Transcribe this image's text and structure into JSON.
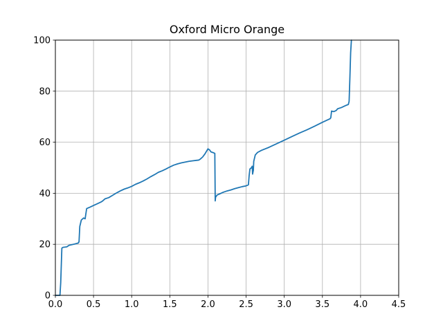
{
  "chart_data": {
    "type": "line",
    "title": "Oxford Micro Orange",
    "xlabel": "",
    "ylabel": "",
    "xlim": [
      0,
      4.5
    ],
    "ylim": [
      0,
      100
    ],
    "xticks": [
      0.0,
      0.5,
      1.0,
      1.5,
      2.0,
      2.5,
      3.0,
      3.5,
      4.0,
      4.5
    ],
    "xtick_labels": [
      "0.0",
      "0.5",
      "1.0",
      "1.5",
      "2.0",
      "2.5",
      "3.0",
      "3.5",
      "4.0",
      "4.5"
    ],
    "yticks": [
      0,
      20,
      40,
      60,
      80,
      100
    ],
    "ytick_labels": [
      "0",
      "20",
      "40",
      "60",
      "80",
      "100"
    ],
    "grid": true,
    "series": [
      {
        "color": "#1f77b4",
        "points": [
          [
            0.0,
            0.0
          ],
          [
            0.06,
            0.0
          ],
          [
            0.07,
            5.0
          ],
          [
            0.085,
            18.5
          ],
          [
            0.1,
            18.8
          ],
          [
            0.15,
            19.0
          ],
          [
            0.18,
            19.6
          ],
          [
            0.25,
            20.1
          ],
          [
            0.3,
            20.5
          ],
          [
            0.31,
            21.0
          ],
          [
            0.32,
            27.0
          ],
          [
            0.34,
            29.5
          ],
          [
            0.37,
            30.3
          ],
          [
            0.39,
            30.0
          ],
          [
            0.4,
            32.0
          ],
          [
            0.41,
            34.0
          ],
          [
            0.45,
            34.5
          ],
          [
            0.5,
            35.2
          ],
          [
            0.55,
            35.9
          ],
          [
            0.6,
            36.6
          ],
          [
            0.62,
            37.0
          ],
          [
            0.65,
            37.8
          ],
          [
            0.7,
            38.3
          ],
          [
            0.75,
            39.2
          ],
          [
            0.8,
            40.1
          ],
          [
            0.85,
            40.9
          ],
          [
            0.9,
            41.6
          ],
          [
            0.95,
            42.1
          ],
          [
            1.0,
            42.7
          ],
          [
            1.05,
            43.5
          ],
          [
            1.1,
            44.1
          ],
          [
            1.15,
            44.8
          ],
          [
            1.2,
            45.6
          ],
          [
            1.25,
            46.5
          ],
          [
            1.3,
            47.3
          ],
          [
            1.35,
            48.2
          ],
          [
            1.4,
            48.8
          ],
          [
            1.45,
            49.5
          ],
          [
            1.5,
            50.3
          ],
          [
            1.55,
            51.0
          ],
          [
            1.6,
            51.5
          ],
          [
            1.65,
            51.9
          ],
          [
            1.7,
            52.2
          ],
          [
            1.75,
            52.5
          ],
          [
            1.8,
            52.7
          ],
          [
            1.85,
            52.9
          ],
          [
            1.88,
            53.0
          ],
          [
            1.9,
            53.4
          ],
          [
            1.93,
            54.2
          ],
          [
            1.96,
            55.4
          ],
          [
            1.98,
            56.4
          ],
          [
            2.0,
            57.4
          ],
          [
            2.02,
            57.0
          ],
          [
            2.04,
            56.2
          ],
          [
            2.07,
            55.9
          ],
          [
            2.09,
            55.6
          ],
          [
            2.095,
            37.0
          ],
          [
            2.1,
            38.5
          ],
          [
            2.12,
            39.3
          ],
          [
            2.15,
            39.7
          ],
          [
            2.2,
            40.4
          ],
          [
            2.25,
            40.9
          ],
          [
            2.3,
            41.3
          ],
          [
            2.35,
            41.8
          ],
          [
            2.4,
            42.2
          ],
          [
            2.45,
            42.6
          ],
          [
            2.5,
            42.9
          ],
          [
            2.53,
            43.3
          ],
          [
            2.54,
            47.0
          ],
          [
            2.55,
            49.5
          ],
          [
            2.57,
            50.0
          ],
          [
            2.58,
            50.6
          ],
          [
            2.585,
            47.5
          ],
          [
            2.595,
            49.0
          ],
          [
            2.6,
            52.5
          ],
          [
            2.62,
            55.0
          ],
          [
            2.65,
            56.0
          ],
          [
            2.7,
            56.8
          ],
          [
            2.8,
            58.0
          ],
          [
            2.9,
            59.4
          ],
          [
            3.0,
            60.8
          ],
          [
            3.1,
            62.2
          ],
          [
            3.2,
            63.6
          ],
          [
            3.3,
            64.9
          ],
          [
            3.4,
            66.3
          ],
          [
            3.5,
            67.8
          ],
          [
            3.6,
            69.2
          ],
          [
            3.61,
            69.6
          ],
          [
            3.62,
            72.2
          ],
          [
            3.65,
            72.0
          ],
          [
            3.68,
            72.4
          ],
          [
            3.7,
            73.1
          ],
          [
            3.75,
            73.6
          ],
          [
            3.8,
            74.3
          ],
          [
            3.84,
            74.8
          ],
          [
            3.85,
            76.0
          ],
          [
            3.86,
            85.0
          ],
          [
            3.87,
            95.0
          ],
          [
            3.88,
            100.0
          ]
        ]
      }
    ]
  }
}
